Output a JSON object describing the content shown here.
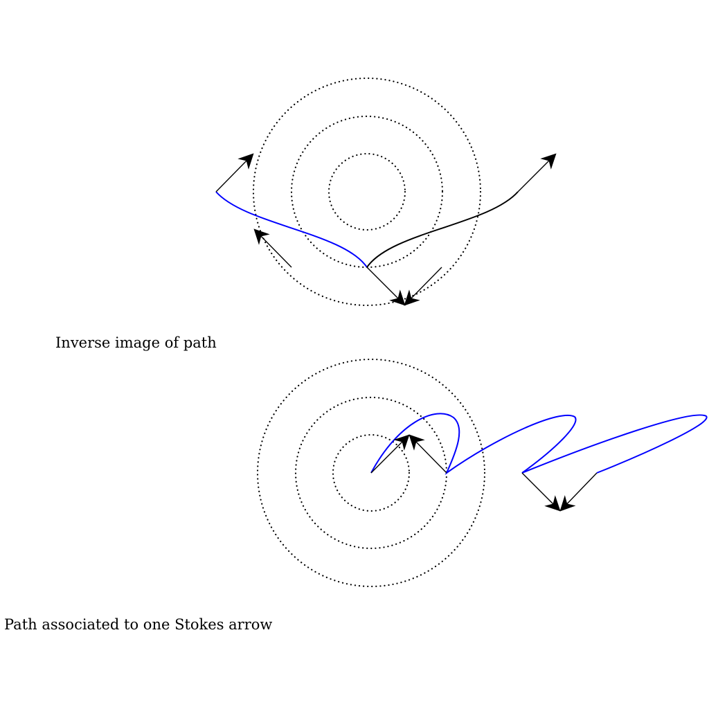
{
  "captions": {
    "top": "Inverse image of path",
    "bottom": "Path associated to one Stokes arrow"
  },
  "colors": {
    "path_blue": "#0000ff",
    "path_black": "#000000",
    "circles": "#000000",
    "arrows": "#000000"
  }
}
